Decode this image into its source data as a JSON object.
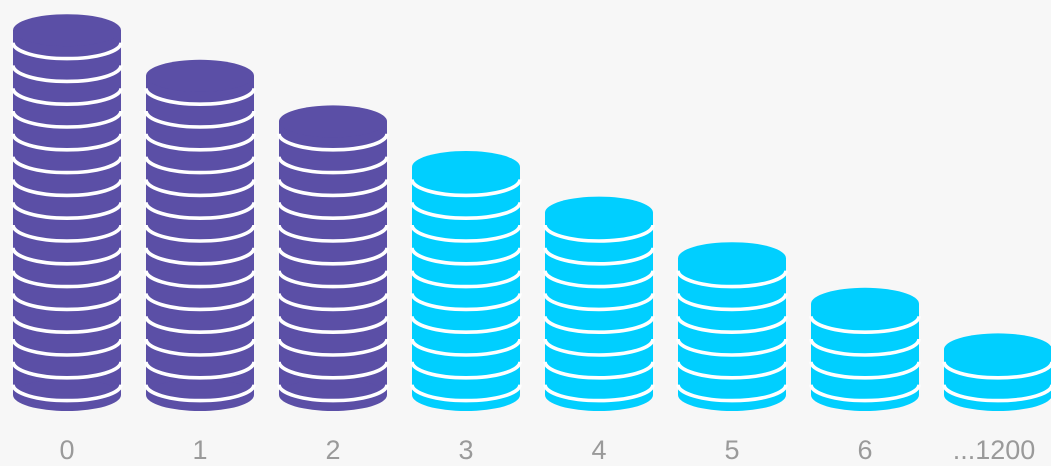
{
  "chart_data": {
    "type": "bar",
    "categories": [
      "0",
      "1",
      "2",
      "3",
      "4",
      "5",
      "6",
      "...1200"
    ],
    "values": [
      17,
      15,
      13,
      11,
      9,
      7,
      5,
      3
    ],
    "title": "",
    "xlabel": "",
    "ylabel": "",
    "grid": false,
    "legend": "none",
    "colors": {
      "group_a": "#5b4fa6",
      "group_b": "#00cfff",
      "background": "#f7f7f7",
      "stripe": "#ffffff",
      "tick_label": "#9a9a9a"
    },
    "bar_groups": [
      "group_a",
      "group_a",
      "group_a",
      "group_b",
      "group_b",
      "group_b",
      "group_b",
      "group_b"
    ]
  }
}
